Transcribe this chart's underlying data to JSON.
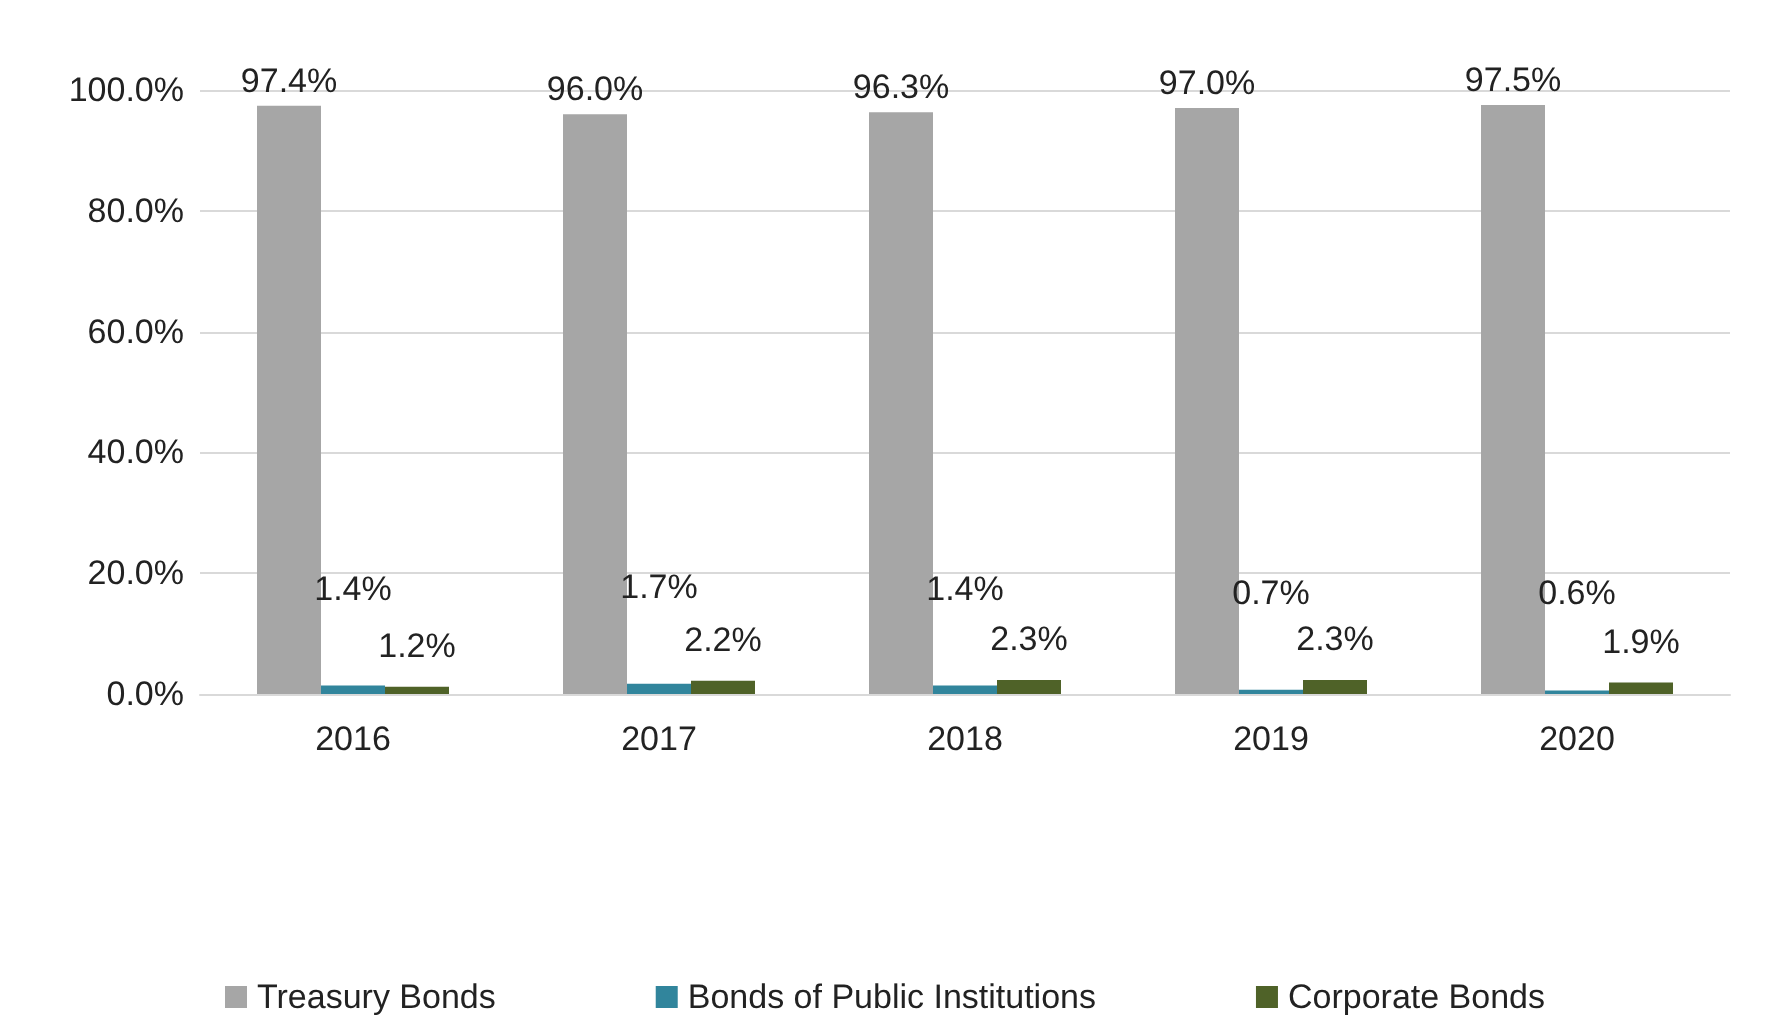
{
  "chart_data": {
    "type": "bar",
    "categories": [
      "2016",
      "2017",
      "2018",
      "2019",
      "2020"
    ],
    "series": [
      {
        "name": "Treasury Bonds",
        "color": "#a6a6a6",
        "values": [
          97.4,
          96.0,
          96.3,
          97.0,
          97.5
        ],
        "value_labels": [
          "97.4%",
          "96.0%",
          "96.3%",
          "97.0%",
          "97.5%"
        ]
      },
      {
        "name": "Bonds of Public Institutions",
        "color": "#31859c",
        "values": [
          1.4,
          1.7,
          1.4,
          0.7,
          0.6
        ],
        "value_labels": [
          "1.4%",
          "1.7%",
          "1.4%",
          "0.7%",
          "0.6%"
        ]
      },
      {
        "name": "Corporate Bonds",
        "color": "#4f6228",
        "values": [
          1.2,
          2.2,
          2.3,
          2.3,
          1.9
        ],
        "value_labels": [
          "1.2%",
          "2.2%",
          "2.3%",
          "2.3%",
          "1.9%"
        ]
      }
    ],
    "ylim": [
      0,
      100
    ],
    "yticks": [
      {
        "value": 0,
        "label": "0.0%"
      },
      {
        "value": 20,
        "label": "20.0%"
      },
      {
        "value": 40,
        "label": "40.0%"
      },
      {
        "value": 60,
        "label": "60.0%"
      },
      {
        "value": 80,
        "label": "80.0%"
      },
      {
        "value": 100,
        "label": "100.0%"
      }
    ],
    "grid": "y",
    "legend": "bottom"
  }
}
